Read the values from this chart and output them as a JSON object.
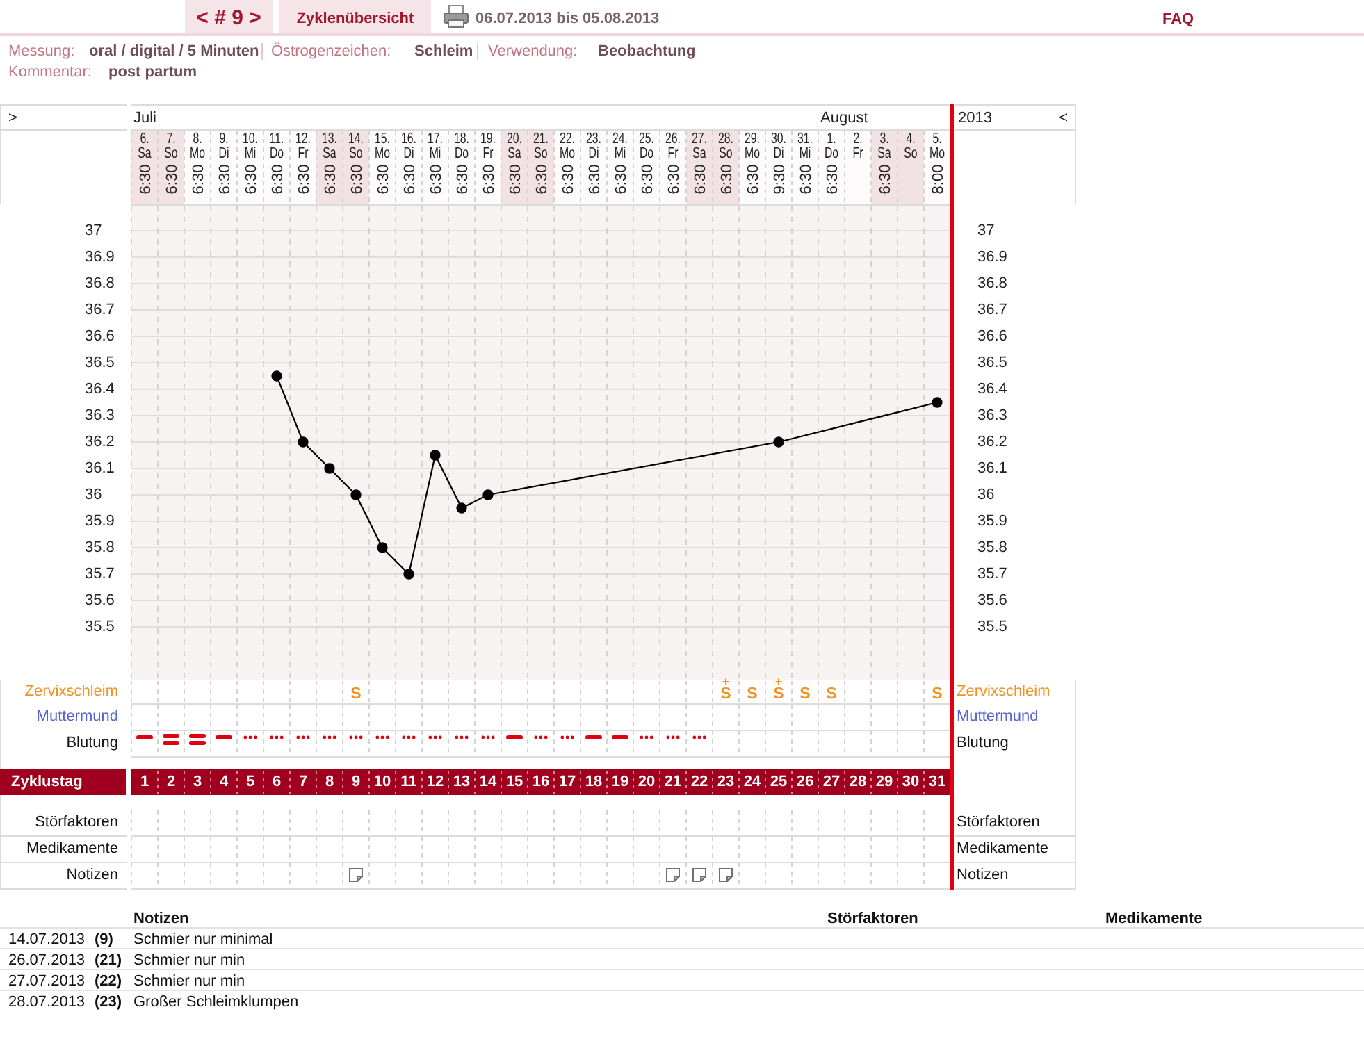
{
  "chart_data": [
    {
      "type": "other",
      "annotations": [
        "< # 9 >",
        "Zyklenübersicht",
        "06.07.2013 bis 05.08.2013",
        "FAQ",
        "Messung:",
        "oral / digital / 5 Minuten",
        "Östrogenzeichen:",
        "Schleim",
        "Verwendung:",
        "Beobachtung",
        "Kommentar:",
        "post partum"
      ]
    },
    {
      "type": "line",
      "x": [
        6,
        7,
        8,
        9,
        10,
        11,
        12,
        13,
        14,
        25,
        31
      ],
      "values": [
        36.45,
        36.2,
        36.1,
        36.0,
        35.8,
        35.7,
        36.15,
        35.95,
        36.0,
        36.2,
        36.35
      ],
      "color": "#000000",
      "marker": "circle",
      "line_style": "solid",
      "xlabel": "Zyklustag",
      "xlim": [
        0.5,
        31.5
      ],
      "xticks": [
        1,
        2,
        3,
        4,
        5,
        6,
        7,
        8,
        9,
        10,
        11,
        12,
        13,
        14,
        15,
        16,
        17,
        18,
        19,
        20,
        21,
        22,
        23,
        24,
        25,
        26,
        27,
        28,
        29,
        30,
        31
      ],
      "x2lim": [
        "2013-07-05T12:00",
        "2013-08-05T12:00"
      ],
      "x2ticks": [
        {
          "value": "2013-07-06",
          "label": "6.\nSa\n6:30"
        },
        {
          "value": "2013-07-07",
          "label": "7.\nSo\n6:30"
        },
        {
          "value": "2013-07-08",
          "label": "8.\nMo\n6:30"
        },
        {
          "value": "2013-07-09",
          "label": "9.\nDi\n6:30"
        },
        {
          "value": "2013-07-10",
          "label": "10.\nMi\n6:30"
        },
        {
          "value": "2013-07-11",
          "label": "11.\nDo\n6:30"
        },
        {
          "value": "2013-07-12",
          "label": "12.\nFr\n6:30"
        },
        {
          "value": "2013-07-13",
          "label": "13.\nSa\n6:30"
        },
        {
          "value": "2013-07-14",
          "label": "14.\nSo\n6:30"
        },
        {
          "value": "2013-07-15",
          "label": "15.\nMo\n6:30"
        },
        {
          "value": "2013-07-16",
          "label": "16.\nDi\n6:30"
        },
        {
          "value": "2013-07-17",
          "label": "17.\nMi\n6:30"
        },
        {
          "value": "2013-07-18",
          "label": "18.\nDo\n6:30"
        },
        {
          "value": "2013-07-19",
          "label": "19.\nFr\n6:30"
        },
        {
          "value": "2013-07-20",
          "label": "20.\nSa\n6:30"
        },
        {
          "value": "2013-07-21",
          "label": "21.\nSo\n6:30"
        },
        {
          "value": "2013-07-22",
          "label": "22.\nMo\n6:30"
        },
        {
          "value": "2013-07-23",
          "label": "23.\nDi\n6:30"
        },
        {
          "value": "2013-07-24",
          "label": "24.\nMi\n6:30"
        },
        {
          "value": "2013-07-25",
          "label": "25.\nDo\n6:30"
        },
        {
          "value": "2013-07-26",
          "label": "26.\nFr\n6:30"
        },
        {
          "value": "2013-07-27",
          "label": "27.\nSa\n6:30"
        },
        {
          "value": "2013-07-28",
          "label": "28.\nSo\n6:30"
        },
        {
          "value": "2013-07-29",
          "label": "29.\nMo\n6:30"
        },
        {
          "value": "2013-07-30",
          "label": "30.\nDi\n9:30"
        },
        {
          "value": "2013-07-31",
          "label": "31.\nMi\n6:30"
        },
        {
          "value": "2013-08-01",
          "label": "1.\nDo\n6:30"
        },
        {
          "value": "2013-08-02",
          "label": "2.\nFr"
        },
        {
          "value": "2013-08-03",
          "label": "3.\nSa\n6:30"
        },
        {
          "value": "2013-08-04",
          "label": "4.\nSo"
        },
        {
          "value": "2013-08-05",
          "label": "5.\nMo\n8:00"
        }
      ],
      "ylim": [
        35.3,
        37.1
      ],
      "yticks": [
        35.5,
        35.6,
        35.7,
        35.8,
        35.9,
        36,
        36.1,
        36.2,
        36.3,
        36.4,
        36.5,
        36.6,
        36.7,
        36.8,
        36.9,
        37
      ],
      "y2lim": [
        35.3,
        37.1
      ],
      "y2ticks": [
        35.5,
        35.6,
        35.7,
        35.8,
        35.9,
        36,
        36.1,
        36.2,
        36.3,
        36.4,
        36.5,
        36.6,
        36.7,
        36.8,
        36.9,
        37
      ],
      "grid": true,
      "annotations": [
        ">",
        "Juli",
        "August",
        "2013",
        "<"
      ]
    },
    {
      "type": "other",
      "ylabel": "Zervixschleim",
      "y2label": "Zervixschleim",
      "color": "#f3901f",
      "categories": [
        null,
        null,
        null,
        null,
        null,
        null,
        null,
        null,
        "S",
        null,
        null,
        null,
        null,
        null,
        null,
        null,
        null,
        null,
        null,
        null,
        null,
        null,
        "S$^{+}$",
        "S",
        "S$^{+}$",
        "S",
        "S",
        null,
        null,
        null,
        "S"
      ]
    },
    {
      "type": "other",
      "ylabel": "Muttermund",
      "y2label": "Muttermund",
      "color": "#5563d6",
      "categories": [
        null,
        null,
        null,
        null,
        null,
        null,
        null,
        null,
        null,
        null,
        null,
        null,
        null,
        null,
        null,
        null,
        null,
        null,
        null,
        null,
        null,
        null,
        null,
        null,
        null,
        null,
        null,
        null,
        null,
        null,
        null
      ]
    },
    {
      "type": "other",
      "ylabel": "Blutung",
      "y2label": "Blutung",
      "categories": [
        null,
        null,
        null,
        null,
        null,
        null,
        null,
        null,
        null,
        null,
        null,
        null,
        null,
        null,
        null,
        null,
        null,
        null,
        null,
        null,
        null,
        null,
        null,
        null,
        null,
        null,
        null,
        null,
        null,
        null,
        null
      ]
    },
    {
      "type": "other",
      "ylabel": "Störfaktoren",
      "y2label": "Störfaktoren",
      "categories": [
        null,
        null,
        null,
        null,
        null,
        null,
        null,
        null,
        null,
        null,
        null,
        null,
        null,
        null,
        null,
        null,
        null,
        null,
        null,
        null,
        null,
        null,
        null,
        null,
        null,
        null,
        null,
        null,
        null,
        null,
        null
      ]
    },
    {
      "type": "other",
      "ylabel": "Medikamente",
      "y2label": "Medikamente",
      "categories": [
        null,
        null,
        null,
        null,
        null,
        null,
        null,
        null,
        null,
        null,
        null,
        null,
        null,
        null,
        null,
        null,
        null,
        null,
        null,
        null,
        null,
        null,
        null,
        null,
        null,
        null,
        null,
        null,
        null,
        null,
        null
      ]
    },
    {
      "type": "other",
      "ylabel": "Notizen",
      "y2label": "Notizen",
      "categories": [
        null,
        null,
        null,
        null,
        null,
        null,
        null,
        null,
        null,
        null,
        null,
        null,
        null,
        null,
        null,
        null,
        null,
        null,
        null,
        null,
        null,
        null,
        null,
        null,
        null,
        null,
        null,
        null,
        null,
        null,
        null
      ]
    },
    {
      "type": "other",
      "annotations": [
        "Notizen",
        "Störfaktoren",
        "Medikamente",
        "14.07.2013",
        "(9)",
        "Schmier nur minimal",
        "26.07.2013",
        "(21)",
        "Schmier nur min",
        "27.07.2013",
        "(22)",
        "Schmier nur min",
        "28.07.2013",
        "(23)",
        "Großer Schleimklumpen"
      ]
    }
  ]
}
